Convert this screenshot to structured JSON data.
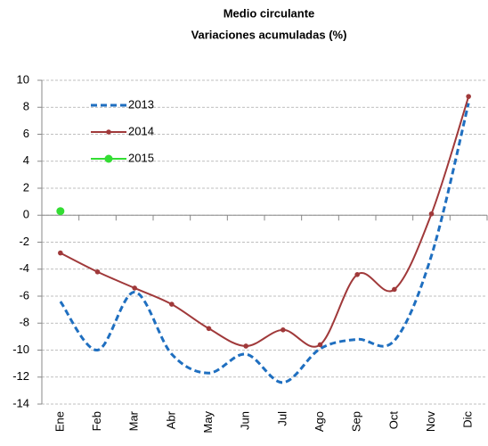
{
  "chart_data": {
    "type": "line",
    "title": "Medio circulante",
    "subtitle": "Variaciones acumuladas (%)",
    "categories": [
      "Ene",
      "Feb",
      "Mar",
      "Abr",
      "May",
      "Jun",
      "Jul",
      "Ago",
      "Sep",
      "Oct",
      "Nov",
      "Dic"
    ],
    "series": [
      {
        "name": "2013",
        "color": "#1f6fc0",
        "dashed": true,
        "markers": false,
        "values": [
          -6.4,
          -10.0,
          -5.7,
          -10.3,
          -11.7,
          -10.3,
          -12.4,
          -9.9,
          -9.2,
          -9.3,
          -3.0,
          8.3
        ]
      },
      {
        "name": "2014",
        "color": "#a0393a",
        "dashed": false,
        "markers": true,
        "values": [
          -2.8,
          -4.2,
          -5.4,
          -6.6,
          -8.4,
          -9.7,
          -8.5,
          -9.6,
          -4.4,
          -5.5,
          0.1,
          8.8
        ]
      },
      {
        "name": "2015",
        "color": "#33dd33",
        "dashed": false,
        "markers": true,
        "values": [
          0.3,
          null,
          null,
          null,
          null,
          null,
          null,
          null,
          null,
          null,
          null,
          null
        ]
      }
    ],
    "ylim": [
      -14,
      10
    ],
    "yticks": [
      -14,
      -12,
      -10,
      -8,
      -6,
      -4,
      -2,
      0,
      2,
      4,
      6,
      8,
      10
    ],
    "grid": true,
    "legend": "upper left"
  }
}
